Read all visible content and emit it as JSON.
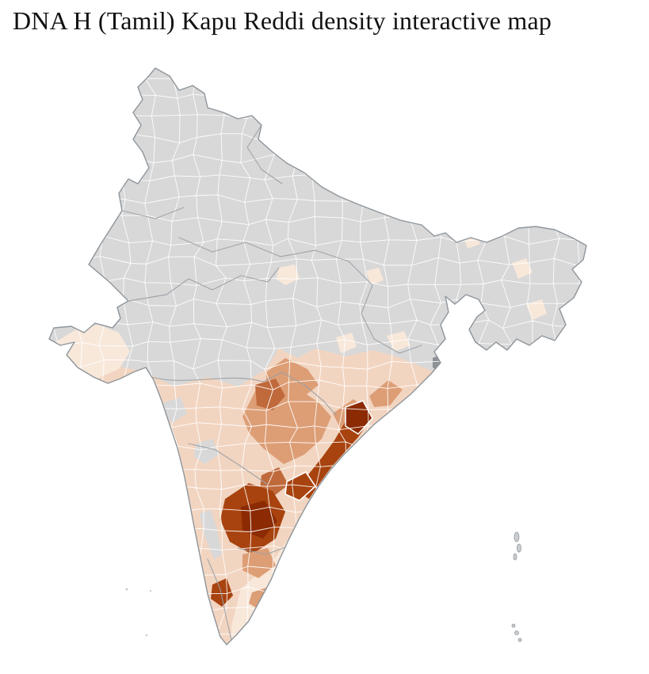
{
  "page": {
    "title": "DNA H (Tamil) Kapu Reddi density interactive map"
  },
  "map": {
    "kind": "choropleth",
    "area": "India districts",
    "colors": {
      "background": "#ffffff",
      "no_data": "#d8d8d8",
      "district_border": "#ffffff",
      "state_border": "#9aa0a6",
      "country_outline": "#8e959b",
      "metro_marker": "#8d9196",
      "island": "#cbced1"
    },
    "density_scale": {
      "none": "#d8d8d8",
      "very_low": "#f8e8da",
      "low": "#f2d5c1",
      "medium": "#dd9e76",
      "high": "#c06a3c",
      "very_high": "#a8430f",
      "max": "#8c2a03"
    },
    "regions": {
      "base": "none",
      "south-peninsula": "low",
      "tamilnadu-east": "very_low",
      "gujarat-kathiawar": "very_low",
      "vidarbha": "medium",
      "telangana": "medium",
      "north-coastal-andhra": "medium",
      "odisha-south": "medium",
      "telangana-core": "high",
      "prakasam-link": "high",
      "coastal-andhra-strip": "very_high",
      "krishna-godavari-delta": "max",
      "nellore": "very_high",
      "rayalaseema": "very_high",
      "rayalaseema-core": "max",
      "madurai-district": "very_high",
      "tn-interior": "medium",
      "tn-interior-2": "medium",
      "karnataka-pocket-1": "none",
      "karnataka-pocket-2": "none",
      "karnataka-coast": "none",
      "malwa-patch": "very_low",
      "sikkim-patch": "very_low",
      "assam-patch-1": "very_low",
      "assam-patch-2": "very_low",
      "jharkhand-patch": "very_low",
      "chhattisgarh-patch": "very_low",
      "up-patch": "very_low"
    }
  }
}
